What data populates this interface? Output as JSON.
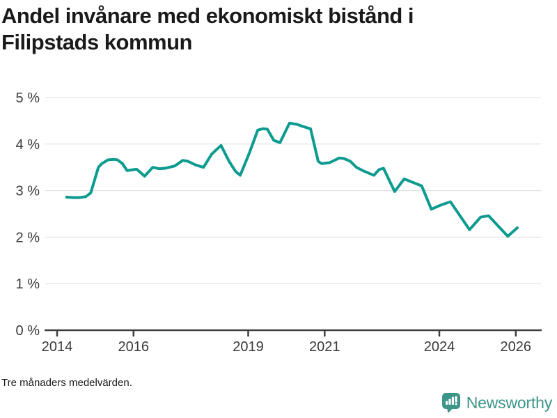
{
  "title": "Andel invånare med ekonomiskt bistånd i Filipstads kommun",
  "title_lines": [
    "Andel invånare med ekonomiskt bistånd i",
    "Filipstads kommun"
  ],
  "footnote": "Tre månaders medelvärden.",
  "brand": {
    "name": "Newsworthy",
    "icon": "bar-chart-speech-bubble-icon",
    "color": "#3d9488"
  },
  "colors": {
    "line": "#0d9b8f",
    "grid": "#dcdcdc",
    "axis": "#3d3d3d",
    "tick_text": "#3a3a3a",
    "title_text": "#1a1a1a"
  },
  "chart_data": {
    "type": "line",
    "title": "Andel invånare med ekonomiskt bistånd i Filipstads kommun",
    "subtitle": "Tre månaders medelvärden.",
    "xlabel": "",
    "ylabel": "",
    "unit": "%",
    "grid": "horizontal",
    "legend_position": "none",
    "xlim": [
      2013.7,
      2026.6
    ],
    "ylim": [
      0,
      5
    ],
    "x_ticks": [
      2014,
      2016,
      2019,
      2021,
      2024,
      2026
    ],
    "x_tick_labels": [
      "2014",
      "2016",
      "2019",
      "2021",
      "2024",
      "2026"
    ],
    "y_ticks": [
      0,
      1,
      2,
      3,
      4,
      5
    ],
    "y_tick_labels": [
      "0 %",
      "1 %",
      "2 %",
      "3 %",
      "4 %",
      "5 %"
    ],
    "series": [
      {
        "name": "Andel invånare med ekonomiskt bistånd",
        "points": [
          [
            2014.25,
            2.86
          ],
          [
            2014.42,
            2.85
          ],
          [
            2014.58,
            2.85
          ],
          [
            2014.75,
            2.87
          ],
          [
            2014.88,
            2.95
          ],
          [
            2015.08,
            3.5
          ],
          [
            2015.17,
            3.58
          ],
          [
            2015.33,
            3.66
          ],
          [
            2015.5,
            3.67
          ],
          [
            2015.58,
            3.66
          ],
          [
            2015.71,
            3.58
          ],
          [
            2015.83,
            3.43
          ],
          [
            2016.0,
            3.45
          ],
          [
            2016.08,
            3.46
          ],
          [
            2016.29,
            3.31
          ],
          [
            2016.5,
            3.5
          ],
          [
            2016.67,
            3.47
          ],
          [
            2016.83,
            3.48
          ],
          [
            2017.08,
            3.53
          ],
          [
            2017.29,
            3.65
          ],
          [
            2017.42,
            3.63
          ],
          [
            2017.63,
            3.55
          ],
          [
            2017.83,
            3.5
          ],
          [
            2018.04,
            3.78
          ],
          [
            2018.13,
            3.85
          ],
          [
            2018.29,
            3.97
          ],
          [
            2018.5,
            3.63
          ],
          [
            2018.67,
            3.41
          ],
          [
            2018.79,
            3.33
          ],
          [
            2019.04,
            3.83
          ],
          [
            2019.25,
            4.3
          ],
          [
            2019.38,
            4.33
          ],
          [
            2019.5,
            4.32
          ],
          [
            2019.67,
            4.08
          ],
          [
            2019.83,
            4.03
          ],
          [
            2020.08,
            4.45
          ],
          [
            2020.29,
            4.42
          ],
          [
            2020.46,
            4.37
          ],
          [
            2020.63,
            4.33
          ],
          [
            2020.83,
            3.63
          ],
          [
            2020.92,
            3.58
          ],
          [
            2021.13,
            3.6
          ],
          [
            2021.38,
            3.7
          ],
          [
            2021.5,
            3.69
          ],
          [
            2021.67,
            3.63
          ],
          [
            2021.83,
            3.5
          ],
          [
            2022.0,
            3.43
          ],
          [
            2022.17,
            3.37
          ],
          [
            2022.29,
            3.33
          ],
          [
            2022.42,
            3.45
          ],
          [
            2022.54,
            3.48
          ],
          [
            2022.83,
            2.98
          ],
          [
            2023.08,
            3.25
          ],
          [
            2023.33,
            3.17
          ],
          [
            2023.54,
            3.1
          ],
          [
            2023.79,
            2.6
          ],
          [
            2024.04,
            2.69
          ],
          [
            2024.29,
            2.76
          ],
          [
            2024.79,
            2.16
          ],
          [
            2025.08,
            2.43
          ],
          [
            2025.29,
            2.46
          ],
          [
            2025.79,
            2.02
          ],
          [
            2026.04,
            2.2
          ]
        ]
      }
    ]
  }
}
